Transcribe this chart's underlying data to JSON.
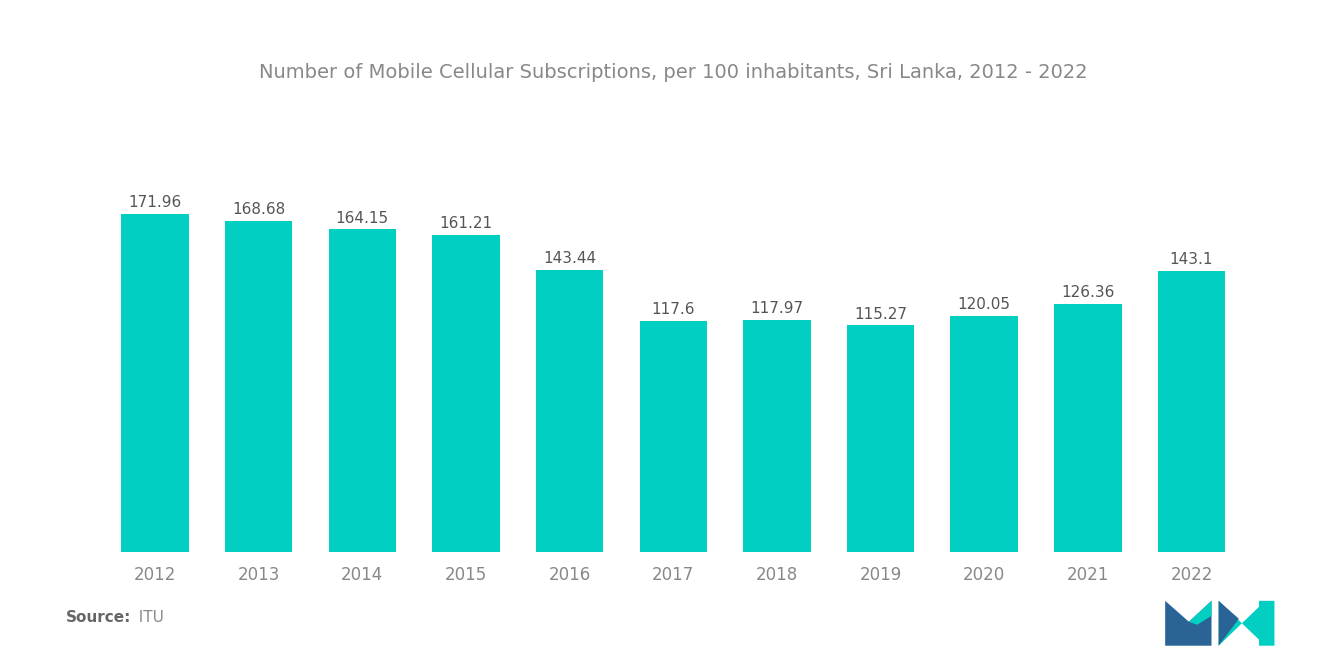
{
  "title": "Number of Mobile Cellular Subscriptions, per 100 inhabitants, Sri Lanka, 2012 - 2022",
  "years": [
    2012,
    2013,
    2014,
    2015,
    2016,
    2017,
    2018,
    2019,
    2020,
    2021,
    2022
  ],
  "values": [
    171.96,
    168.68,
    164.15,
    161.21,
    143.44,
    117.6,
    117.97,
    115.27,
    120.05,
    126.36,
    143.1
  ],
  "bar_color": "#00CFC1",
  "background_color": "#FFFFFF",
  "title_color": "#888888",
  "label_color": "#555555",
  "xtick_color": "#888888",
  "source_label": "Source:",
  "source_value": "  ITU",
  "title_fontsize": 14,
  "label_fontsize": 11,
  "xtick_fontsize": 12,
  "source_fontsize": 11,
  "ylim": [
    0,
    220
  ],
  "bar_width": 0.65
}
